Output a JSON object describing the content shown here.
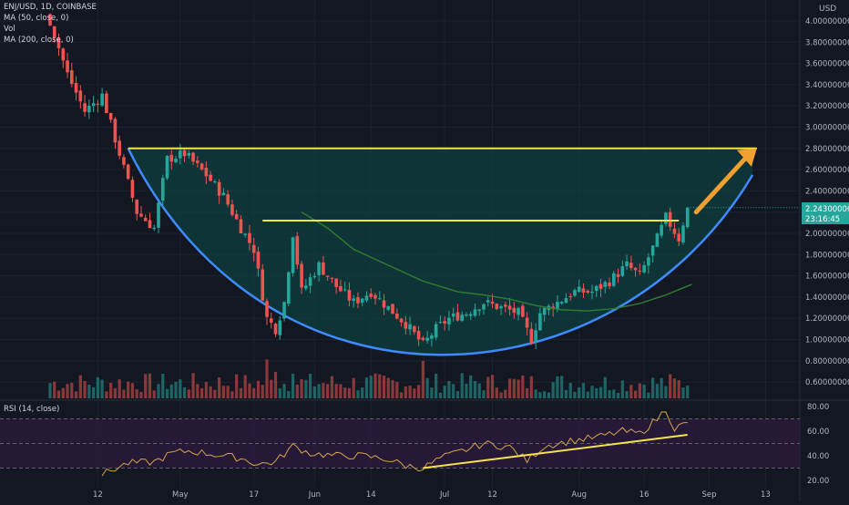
{
  "header": {
    "symbol_line": "ENJ/USD, 1D, COINBASE",
    "ma50_label": "MA (50, close, 0)",
    "vol_label": "Vol",
    "ma200_label": "MA (200, close, 0)",
    "currency_label": "USD"
  },
  "price_tag": {
    "value": "2.24300000",
    "countdown": "23:16:45"
  },
  "rsi_legend": "RSI (14, close)",
  "colors": {
    "background": "#131722",
    "up": "#26a69a",
    "down": "#ef5350",
    "pattern_fill": "#0f3f3f",
    "cup_curve": "#3d8bff",
    "resistance": "#f5e24b",
    "ma50": "#2e7d32",
    "arrow": "#f0a030",
    "rsi_line": "#d4a54a",
    "rsi_band": "#2a1a3d",
    "price_tag": "#26a69a",
    "axis_text": "#b2b5be"
  },
  "chart_data": [
    {
      "type": "candlestick",
      "title": "ENJ/USD, 1D, COINBASE",
      "ylabel": "USD",
      "ylim": [
        0.5,
        4.1
      ],
      "y_ticks": [
        "4.00000000",
        "3.80000000",
        "3.60000000",
        "3.40000000",
        "3.20000000",
        "3.00000000",
        "2.80000000",
        "2.60000000",
        "2.40000000",
        "2.20000000",
        "2.00000000",
        "1.80000000",
        "1.60000000",
        "1.40000000",
        "1.20000000",
        "1.00000000",
        "0.80000000",
        "0.60000000"
      ],
      "y_tick_values": [
        4.0,
        3.8,
        3.6,
        3.4,
        3.2,
        3.0,
        2.8,
        2.6,
        2.4,
        2.2,
        2.0,
        1.8,
        1.6,
        1.4,
        1.2,
        1.0,
        0.8,
        0.6
      ],
      "x_ticks": [
        "12",
        "May",
        "17",
        "Jun",
        "14",
        "Jul",
        "12",
        "Aug",
        "16",
        "Sep",
        "13"
      ],
      "x_tick_days": [
        11,
        30,
        47,
        61,
        74,
        91,
        102,
        122,
        137,
        152,
        165
      ],
      "anchors": [
        {
          "day": 0,
          "close": 4.0
        },
        {
          "day": 4,
          "close": 3.5
        },
        {
          "day": 8,
          "close": 3.15
        },
        {
          "day": 12,
          "close": 3.3
        },
        {
          "day": 16,
          "close": 2.75
        },
        {
          "day": 20,
          "close": 2.2
        },
        {
          "day": 24,
          "close": 2.05
        },
        {
          "day": 27,
          "close": 2.7
        },
        {
          "day": 31,
          "close": 2.75
        },
        {
          "day": 36,
          "close": 2.55
        },
        {
          "day": 40,
          "close": 2.35
        },
        {
          "day": 44,
          "close": 2.05
        },
        {
          "day": 47,
          "close": 1.85
        },
        {
          "day": 50,
          "close": 1.2
        },
        {
          "day": 52,
          "close": 1.1
        },
        {
          "day": 54,
          "close": 1.35
        },
        {
          "day": 56,
          "close": 2.0
        },
        {
          "day": 58,
          "close": 1.45
        },
        {
          "day": 62,
          "close": 1.7
        },
        {
          "day": 66,
          "close": 1.5
        },
        {
          "day": 70,
          "close": 1.35
        },
        {
          "day": 74,
          "close": 1.45
        },
        {
          "day": 78,
          "close": 1.3
        },
        {
          "day": 82,
          "close": 1.15
        },
        {
          "day": 86,
          "close": 0.95
        },
        {
          "day": 89,
          "close": 1.1
        },
        {
          "day": 92,
          "close": 1.2
        },
        {
          "day": 96,
          "close": 1.25
        },
        {
          "day": 100,
          "close": 1.35
        },
        {
          "day": 104,
          "close": 1.3
        },
        {
          "day": 108,
          "close": 1.25
        },
        {
          "day": 111,
          "close": 1.0
        },
        {
          "day": 113,
          "close": 1.25
        },
        {
          "day": 117,
          "close": 1.35
        },
        {
          "day": 121,
          "close": 1.45
        },
        {
          "day": 125,
          "close": 1.45
        },
        {
          "day": 129,
          "close": 1.55
        },
        {
          "day": 133,
          "close": 1.7
        },
        {
          "day": 136,
          "close": 1.6
        },
        {
          "day": 140,
          "close": 1.95
        },
        {
          "day": 142,
          "close": 2.15
        },
        {
          "day": 145,
          "close": 1.95
        },
        {
          "day": 147,
          "close": 2.25
        }
      ],
      "last_close": 2.243,
      "ma50": [
        {
          "day": 58,
          "value": 2.2
        },
        {
          "day": 64,
          "value": 2.05
        },
        {
          "day": 70,
          "value": 1.85
        },
        {
          "day": 78,
          "value": 1.7
        },
        {
          "day": 86,
          "value": 1.55
        },
        {
          "day": 94,
          "value": 1.45
        },
        {
          "day": 100,
          "value": 1.42
        },
        {
          "day": 106,
          "value": 1.38
        },
        {
          "day": 112,
          "value": 1.32
        },
        {
          "day": 118,
          "value": 1.28
        },
        {
          "day": 124,
          "value": 1.27
        },
        {
          "day": 130,
          "value": 1.29
        },
        {
          "day": 136,
          "value": 1.34
        },
        {
          "day": 142,
          "value": 1.42
        },
        {
          "day": 148,
          "value": 1.52
        }
      ],
      "volume_shown": true
    },
    {
      "type": "line",
      "title": "RSI (14, close)",
      "ylim": [
        15,
        85
      ],
      "y_ticks": [
        "80.00",
        "60.00",
        "40.00",
        "20.00"
      ],
      "y_tick_values": [
        80,
        60,
        40,
        20
      ],
      "band": [
        30,
        70
      ],
      "values": [
        {
          "day": 12,
          "value": 25
        },
        {
          "day": 18,
          "value": 34
        },
        {
          "day": 24,
          "value": 35
        },
        {
          "day": 28,
          "value": 42
        },
        {
          "day": 32,
          "value": 44
        },
        {
          "day": 38,
          "value": 41
        },
        {
          "day": 44,
          "value": 38
        },
        {
          "day": 48,
          "value": 33
        },
        {
          "day": 52,
          "value": 35
        },
        {
          "day": 56,
          "value": 48
        },
        {
          "day": 60,
          "value": 42
        },
        {
          "day": 66,
          "value": 40
        },
        {
          "day": 72,
          "value": 40
        },
        {
          "day": 78,
          "value": 37
        },
        {
          "day": 82,
          "value": 32
        },
        {
          "day": 86,
          "value": 30
        },
        {
          "day": 90,
          "value": 38
        },
        {
          "day": 96,
          "value": 45
        },
        {
          "day": 100,
          "value": 50
        },
        {
          "day": 106,
          "value": 47
        },
        {
          "day": 110,
          "value": 36
        },
        {
          "day": 114,
          "value": 48
        },
        {
          "day": 120,
          "value": 52
        },
        {
          "day": 126,
          "value": 55
        },
        {
          "day": 132,
          "value": 60
        },
        {
          "day": 136,
          "value": 58
        },
        {
          "day": 140,
          "value": 70
        },
        {
          "day": 142,
          "value": 78
        },
        {
          "day": 144,
          "value": 62
        },
        {
          "day": 147,
          "value": 67
        }
      ]
    }
  ]
}
